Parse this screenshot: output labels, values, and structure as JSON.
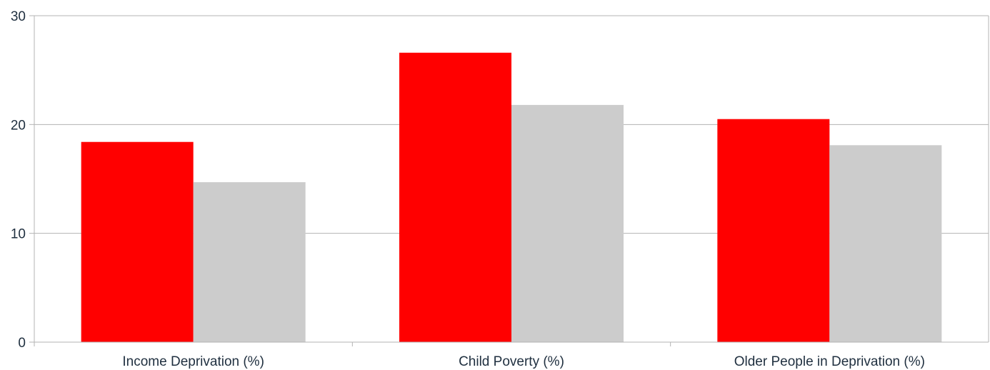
{
  "chart_data": {
    "type": "bar",
    "categories": [
      "Income Deprivation (%)",
      "Child Poverty (%)",
      "Older People in Deprivation (%)"
    ],
    "series": [
      {
        "values": [
          18.4,
          26.6,
          20.5
        ],
        "color": "#ff0000"
      },
      {
        "values": [
          14.7,
          21.8,
          18.1
        ],
        "color": "#cccccc"
      }
    ],
    "ylim": [
      0,
      30
    ],
    "yticks": [
      0,
      10,
      20,
      30
    ],
    "grid": true,
    "title": "",
    "xlabel": "",
    "ylabel": ""
  }
}
